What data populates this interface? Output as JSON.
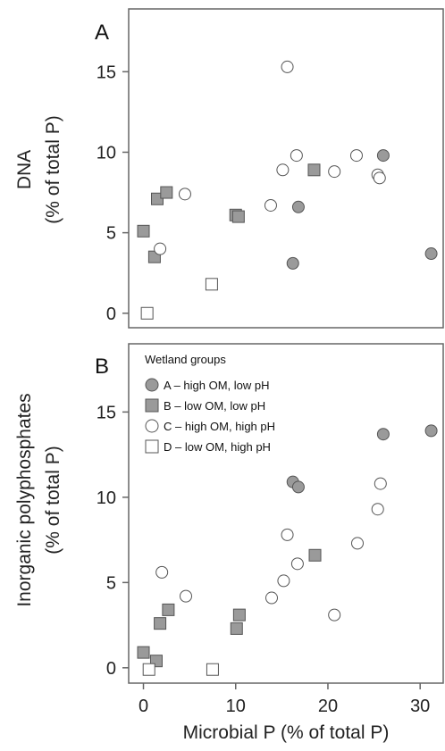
{
  "colors": {
    "A": "#9a9a9a",
    "B": "#9a9a9a",
    "C": "#ffffff",
    "D": "#ffffff",
    "stroke": "#555555",
    "axis": "#666666"
  },
  "chart_data": [
    {
      "type": "scatter",
      "panel_label": "A",
      "ylabel_line1": "DNA",
      "ylabel_line2": "(% of total P)",
      "xlim": [
        -1.6,
        32.5
      ],
      "ylim": [
        -0.9,
        18.9
      ],
      "yticks": [
        0,
        5,
        10,
        15
      ],
      "series": [
        {
          "group": "A",
          "marker": "circle",
          "points": [
            [
              26.0,
              9.8
            ],
            [
              16.8,
              6.6
            ],
            [
              16.2,
              3.1
            ],
            [
              31.2,
              3.7
            ]
          ]
        },
        {
          "group": "B",
          "marker": "square",
          "points": [
            [
              0.0,
              5.1
            ],
            [
              1.5,
              7.1
            ],
            [
              2.5,
              7.5
            ],
            [
              10.0,
              6.1
            ],
            [
              10.3,
              6.0
            ],
            [
              18.5,
              8.9
            ],
            [
              1.2,
              3.5
            ]
          ]
        },
        {
          "group": "C",
          "marker": "circle",
          "points": [
            [
              15.6,
              15.3
            ],
            [
              15.1,
              8.9
            ],
            [
              16.6,
              9.8
            ],
            [
              20.7,
              8.8
            ],
            [
              23.1,
              9.8
            ],
            [
              25.4,
              8.6
            ],
            [
              25.6,
              8.4
            ],
            [
              13.8,
              6.7
            ],
            [
              4.5,
              7.4
            ],
            [
              1.8,
              4.0
            ]
          ]
        },
        {
          "group": "D",
          "marker": "square",
          "points": [
            [
              0.4,
              0.0
            ],
            [
              7.4,
              1.8
            ]
          ]
        }
      ]
    },
    {
      "type": "scatter",
      "panel_label": "B",
      "ylabel_line1": "Inorganic polyphosphates",
      "ylabel_line2": "(% of total P)",
      "xlabel": "Microbial P (% of total P)",
      "xlim": [
        -1.6,
        32.5
      ],
      "ylim": [
        -0.9,
        19.0
      ],
      "yticks": [
        0,
        5,
        10,
        15
      ],
      "xticks": [
        0,
        10,
        20,
        30
      ],
      "legend": {
        "position": "top-left",
        "title": "Wetland groups",
        "entries": [
          {
            "group": "A",
            "marker": "circle",
            "label": "A –  high OM, low pH"
          },
          {
            "group": "B",
            "marker": "square",
            "label": "B – low OM, low pH"
          },
          {
            "group": "C",
            "marker": "circle",
            "label": "C – high OM, high pH"
          },
          {
            "group": "D",
            "marker": "square",
            "label": "D – low OM, high pH"
          }
        ]
      },
      "series": [
        {
          "group": "A",
          "marker": "circle",
          "points": [
            [
              26.0,
              13.7
            ],
            [
              31.2,
              13.9
            ],
            [
              16.2,
              10.9
            ],
            [
              16.8,
              10.6
            ]
          ]
        },
        {
          "group": "B",
          "marker": "square",
          "points": [
            [
              0.0,
              0.9
            ],
            [
              1.4,
              0.4
            ],
            [
              1.8,
              2.6
            ],
            [
              2.7,
              3.4
            ],
            [
              10.1,
              2.3
            ],
            [
              10.4,
              3.1
            ],
            [
              18.6,
              6.6
            ]
          ]
        },
        {
          "group": "C",
          "marker": "circle",
          "points": [
            [
              2.0,
              5.6
            ],
            [
              4.6,
              4.2
            ],
            [
              15.6,
              7.8
            ],
            [
              15.2,
              5.1
            ],
            [
              16.7,
              6.1
            ],
            [
              13.9,
              4.1
            ],
            [
              20.7,
              3.1
            ],
            [
              23.2,
              7.3
            ],
            [
              25.4,
              9.3
            ],
            [
              25.7,
              10.8
            ]
          ]
        },
        {
          "group": "D",
          "marker": "square",
          "points": [
            [
              0.6,
              -0.1
            ],
            [
              7.5,
              -0.1
            ]
          ]
        }
      ]
    }
  ]
}
